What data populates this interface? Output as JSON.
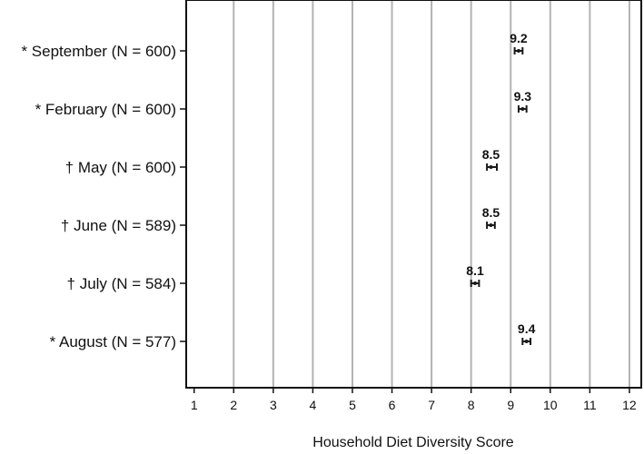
{
  "chart_data": {
    "type": "scatter",
    "title": "",
    "xlabel": "Household Diet Diversity Score",
    "ylabel": "",
    "xlim": [
      0.8,
      12.3
    ],
    "xticks": [
      1,
      2,
      3,
      4,
      5,
      6,
      7,
      8,
      9,
      10,
      11,
      12
    ],
    "grid": "vertical",
    "legend": "none",
    "marker": "error-bar",
    "color": "#1a1a1a",
    "rows": [
      {
        "label": "* September (N = 600)",
        "value": 9.2,
        "low": 9.1,
        "high": 9.3,
        "value_label": "9.2"
      },
      {
        "label": "* February (N = 600)",
        "value": 9.3,
        "low": 9.2,
        "high": 9.4,
        "value_label": "9.3"
      },
      {
        "label": "† May (N = 600)",
        "value": 8.5,
        "low": 8.4,
        "high": 8.65,
        "value_label": "8.5"
      },
      {
        "label": "† June (N = 589)",
        "value": 8.5,
        "low": 8.4,
        "high": 8.6,
        "value_label": "8.5"
      },
      {
        "label": "† July (N = 584)",
        "value": 8.1,
        "low": 8.0,
        "high": 8.2,
        "value_label": "8.1"
      },
      {
        "label": "* August (N = 577)",
        "value": 9.4,
        "low": 9.3,
        "high": 9.5,
        "value_label": "9.4"
      }
    ]
  }
}
